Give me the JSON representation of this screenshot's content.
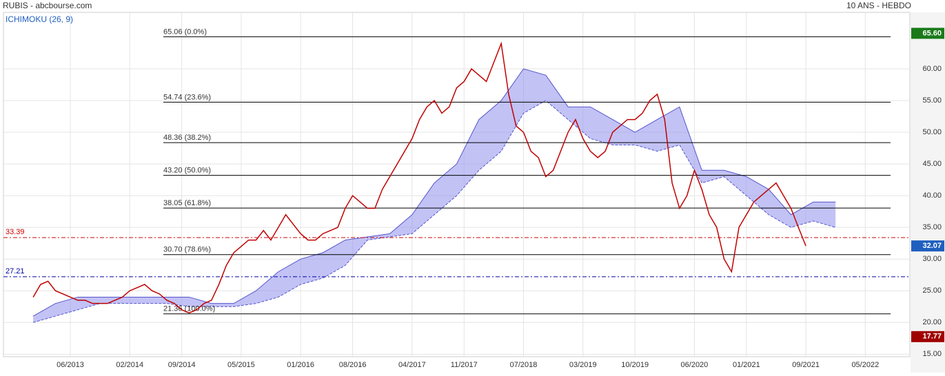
{
  "chart_data": {
    "type": "line",
    "title": "RUBIS - abcbourse.com",
    "subtitle": "10 ANS - HEBDO",
    "indicator": "ICHIMOKU (26, 9)",
    "xlim": [
      "09/2012",
      "11/2022"
    ],
    "xticks": [
      "06/2013",
      "02/2014",
      "09/2014",
      "05/2015",
      "01/2016",
      "08/2016",
      "04/2017",
      "11/2017",
      "07/2018",
      "03/2019",
      "10/2019",
      "06/2020",
      "01/2021",
      "09/2021",
      "05/2022"
    ],
    "ylim": [
      14.6,
      68.9
    ],
    "yticks": [
      {
        "value": 15,
        "label": "15.00"
      },
      {
        "value": 20,
        "label": "20.00"
      },
      {
        "value": 25,
        "label": "25.00"
      },
      {
        "value": 30,
        "label": "30.00"
      },
      {
        "value": 35,
        "label": "35.00"
      },
      {
        "value": 40,
        "label": "40.00"
      },
      {
        "value": 45,
        "label": "45.00"
      },
      {
        "value": 50,
        "label": "50.00"
      },
      {
        "value": 55,
        "label": "55.00"
      },
      {
        "value": 60,
        "label": "60.00"
      }
    ],
    "grid": true,
    "price": {
      "color": "#c00000",
      "x": [
        "01/2013",
        "02/2013",
        "03/2013",
        "04/2013",
        "05/2013",
        "06/2013",
        "07/2013",
        "08/2013",
        "09/2013",
        "10/2013",
        "11/2013",
        "12/2013",
        "01/2014",
        "02/2014",
        "03/2014",
        "04/2014",
        "05/2014",
        "06/2014",
        "07/2014",
        "08/2014",
        "09/2014",
        "10/2014",
        "11/2014",
        "12/2014",
        "01/2015",
        "02/2015",
        "03/2015",
        "04/2015",
        "05/2015",
        "06/2015",
        "07/2015",
        "08/2015",
        "09/2015",
        "10/2015",
        "11/2015",
        "12/2015",
        "01/2016",
        "02/2016",
        "03/2016",
        "04/2016",
        "05/2016",
        "06/2016",
        "07/2016",
        "08/2016",
        "09/2016",
        "10/2016",
        "11/2016",
        "12/2016",
        "01/2017",
        "02/2017",
        "03/2017",
        "04/2017",
        "05/2017",
        "06/2017",
        "07/2017",
        "08/2017",
        "09/2017",
        "10/2017",
        "11/2017",
        "12/2017",
        "01/2018",
        "02/2018",
        "03/2018",
        "04/2018",
        "05/2018",
        "06/2018",
        "07/2018",
        "08/2018",
        "09/2018",
        "10/2018",
        "11/2018",
        "12/2018",
        "01/2019",
        "02/2019",
        "03/2019",
        "04/2019",
        "05/2019",
        "06/2019",
        "07/2019",
        "08/2019",
        "09/2019",
        "10/2019",
        "11/2019",
        "12/2019",
        "01/2020",
        "02/2020",
        "03/2020",
        "04/2020",
        "05/2020",
        "06/2020",
        "07/2020",
        "08/2020",
        "09/2020",
        "10/2020",
        "11/2020",
        "12/2020",
        "01/2021",
        "02/2021",
        "03/2021",
        "04/2021",
        "05/2021",
        "06/2021",
        "07/2021",
        "08/2021",
        "09/2021"
      ],
      "values": [
        24,
        26,
        26.5,
        25,
        24.5,
        24,
        23.5,
        23.5,
        23,
        23,
        23,
        23.5,
        24,
        25,
        25.5,
        26,
        25,
        24.5,
        23.5,
        23,
        22,
        21.5,
        22,
        23,
        23.5,
        26,
        29,
        31,
        32,
        33,
        33,
        34.5,
        33,
        35,
        37,
        35.5,
        34,
        33,
        33,
        34,
        34.5,
        35,
        38,
        40,
        39,
        38,
        38,
        41,
        43,
        45,
        47,
        49,
        52,
        54,
        55,
        53,
        54,
        57,
        58,
        60,
        59,
        58,
        61,
        64,
        56,
        51,
        50,
        47,
        46,
        43,
        44,
        47,
        50,
        52,
        49,
        47,
        46,
        47,
        50,
        51,
        52,
        52,
        53,
        55,
        56,
        52,
        42,
        38,
        40,
        44,
        41,
        37,
        35,
        30,
        28,
        35,
        37,
        39,
        40,
        41,
        42,
        40,
        38,
        35,
        32.07
      ]
    },
    "cloud": {
      "color": "#9999ee",
      "x": [
        "01/2013",
        "04/2013",
        "07/2013",
        "10/2013",
        "01/2014",
        "04/2014",
        "07/2014",
        "10/2014",
        "01/2015",
        "04/2015",
        "07/2015",
        "10/2015",
        "01/2016",
        "04/2016",
        "07/2016",
        "10/2016",
        "01/2017",
        "04/2017",
        "07/2017",
        "10/2017",
        "01/2018",
        "04/2018",
        "07/2018",
        "10/2018",
        "01/2019",
        "04/2019",
        "07/2019",
        "10/2019",
        "01/2020",
        "04/2020",
        "07/2020",
        "10/2020",
        "01/2021",
        "04/2021",
        "07/2021",
        "10/2021",
        "01/2022"
      ],
      "top": [
        21,
        23,
        24,
        24,
        24,
        24,
        24,
        24,
        23,
        23,
        25,
        28,
        30,
        31,
        33,
        33.5,
        34,
        37,
        42,
        45,
        52,
        55,
        60,
        59,
        54,
        54,
        52,
        50,
        52,
        54,
        44,
        44,
        43,
        41,
        37,
        39,
        39
      ],
      "bottom": [
        20,
        21,
        22,
        23,
        23,
        23,
        23,
        22.5,
        22.5,
        22.5,
        23,
        24,
        26,
        27,
        29,
        33,
        33.5,
        34,
        37,
        40,
        44,
        47,
        53,
        55,
        52,
        49,
        48,
        48,
        47,
        48,
        42,
        43,
        40,
        37,
        35,
        36,
        35
      ]
    },
    "fib_levels": [
      {
        "value": 65.06,
        "label": "65.06 (0.0%)"
      },
      {
        "value": 54.74,
        "label": "54.74 (23.6%)"
      },
      {
        "value": 48.36,
        "label": "48.36 (38.2%)"
      },
      {
        "value": 43.2,
        "label": "43.20 (50.0%)"
      },
      {
        "value": 38.05,
        "label": "38.05 (61.8%)"
      },
      {
        "value": 30.7,
        "label": "30.70 (78.6%)"
      },
      {
        "value": 21.36,
        "label": "21.36 (100.0%)"
      }
    ],
    "ref_lines": [
      {
        "value": 33.39,
        "label": "33.39",
        "color": "#cc0000"
      },
      {
        "value": 27.21,
        "label": "27.21",
        "color": "#0000aa"
      }
    ],
    "markers": [
      {
        "value": 65.6,
        "label": "65.60",
        "color": "#1a7a1a"
      },
      {
        "value": 32.07,
        "label": "32.07",
        "color": "#1f5fbf"
      },
      {
        "value": 17.77,
        "label": "17.77",
        "color": "#a00000"
      }
    ]
  }
}
